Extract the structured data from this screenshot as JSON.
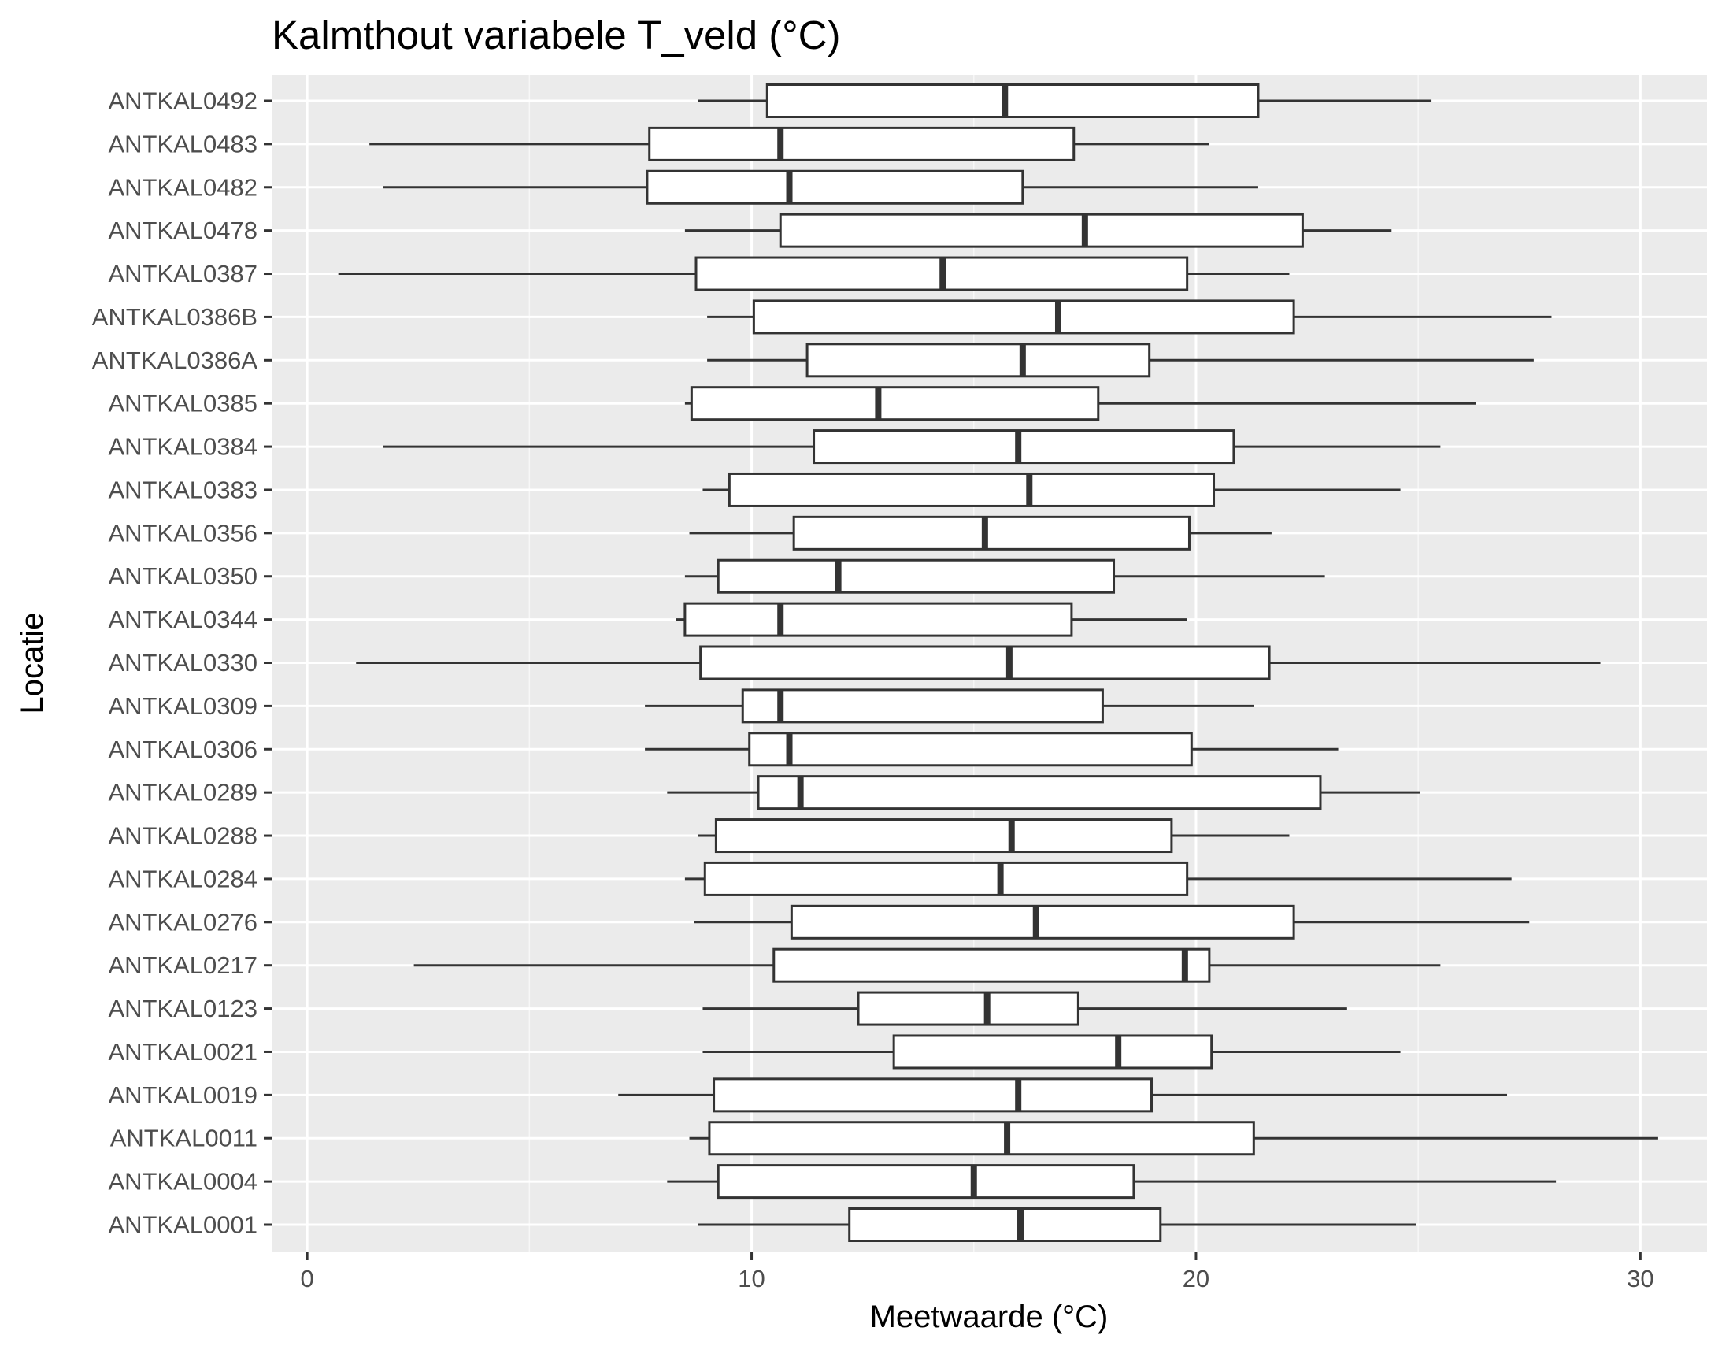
{
  "chart_data": {
    "type": "boxplot",
    "title": "Kalmthout variabele T_veld (°C)",
    "xlabel": "Meetwaarde (°C)",
    "ylabel": "Locatie",
    "xlim": [
      -0.8,
      31.5
    ],
    "x_ticks": [
      0,
      10,
      20,
      30
    ],
    "grid": true,
    "orientation": "horizontal",
    "categories": [
      "ANTKAL0492",
      "ANTKAL0483",
      "ANTKAL0482",
      "ANTKAL0478",
      "ANTKAL0387",
      "ANTKAL0386B",
      "ANTKAL0386A",
      "ANTKAL0385",
      "ANTKAL0384",
      "ANTKAL0383",
      "ANTKAL0356",
      "ANTKAL0350",
      "ANTKAL0344",
      "ANTKAL0330",
      "ANTKAL0309",
      "ANTKAL0306",
      "ANTKAL0289",
      "ANTKAL0288",
      "ANTKAL0284",
      "ANTKAL0276",
      "ANTKAL0217",
      "ANTKAL0123",
      "ANTKAL0021",
      "ANTKAL0019",
      "ANTKAL0011",
      "ANTKAL0004",
      "ANTKAL0001"
    ],
    "boxes": [
      {
        "location": "ANTKAL0492",
        "whisker_low": 8.8,
        "q1": 10.35,
        "median": 15.7,
        "q3": 21.4,
        "whisker_high": 25.3
      },
      {
        "location": "ANTKAL0483",
        "whisker_low": 1.4,
        "q1": 7.7,
        "median": 10.65,
        "q3": 17.25,
        "whisker_high": 20.3
      },
      {
        "location": "ANTKAL0482",
        "whisker_low": 1.7,
        "q1": 7.65,
        "median": 10.85,
        "q3": 16.1,
        "whisker_high": 21.4
      },
      {
        "location": "ANTKAL0478",
        "whisker_low": 8.5,
        "q1": 10.65,
        "median": 17.5,
        "q3": 22.4,
        "whisker_high": 24.4
      },
      {
        "location": "ANTKAL0387",
        "whisker_low": 0.7,
        "q1": 8.75,
        "median": 14.3,
        "q3": 19.8,
        "whisker_high": 22.1
      },
      {
        "location": "ANTKAL0386B",
        "whisker_low": 9.0,
        "q1": 10.05,
        "median": 16.9,
        "q3": 22.2,
        "whisker_high": 28.0
      },
      {
        "location": "ANTKAL0386A",
        "whisker_low": 9.0,
        "q1": 11.25,
        "median": 16.1,
        "q3": 18.95,
        "whisker_high": 27.6
      },
      {
        "location": "ANTKAL0385",
        "whisker_low": 8.5,
        "q1": 8.65,
        "median": 12.85,
        "q3": 17.8,
        "whisker_high": 26.3
      },
      {
        "location": "ANTKAL0384",
        "whisker_low": 1.7,
        "q1": 11.4,
        "median": 16.0,
        "q3": 20.85,
        "whisker_high": 25.5
      },
      {
        "location": "ANTKAL0383",
        "whisker_low": 8.9,
        "q1": 9.5,
        "median": 16.25,
        "q3": 20.4,
        "whisker_high": 24.6
      },
      {
        "location": "ANTKAL0356",
        "whisker_low": 8.6,
        "q1": 10.95,
        "median": 15.25,
        "q3": 19.85,
        "whisker_high": 21.7
      },
      {
        "location": "ANTKAL0350",
        "whisker_low": 8.5,
        "q1": 9.25,
        "median": 11.95,
        "q3": 18.15,
        "whisker_high": 22.9
      },
      {
        "location": "ANTKAL0344",
        "whisker_low": 8.3,
        "q1": 8.5,
        "median": 10.65,
        "q3": 17.2,
        "whisker_high": 19.8
      },
      {
        "location": "ANTKAL0330",
        "whisker_low": 1.1,
        "q1": 8.85,
        "median": 15.8,
        "q3": 21.65,
        "whisker_high": 29.1
      },
      {
        "location": "ANTKAL0309",
        "whisker_low": 7.6,
        "q1": 9.8,
        "median": 10.65,
        "q3": 17.9,
        "whisker_high": 21.3
      },
      {
        "location": "ANTKAL0306",
        "whisker_low": 7.6,
        "q1": 9.95,
        "median": 10.85,
        "q3": 19.9,
        "whisker_high": 23.2
      },
      {
        "location": "ANTKAL0289",
        "whisker_low": 8.1,
        "q1": 10.15,
        "median": 11.1,
        "q3": 22.8,
        "whisker_high": 25.05
      },
      {
        "location": "ANTKAL0288",
        "whisker_low": 8.8,
        "q1": 9.2,
        "median": 15.85,
        "q3": 19.45,
        "whisker_high": 22.1
      },
      {
        "location": "ANTKAL0284",
        "whisker_low": 8.5,
        "q1": 8.95,
        "median": 15.6,
        "q3": 19.8,
        "whisker_high": 27.1
      },
      {
        "location": "ANTKAL0276",
        "whisker_low": 8.7,
        "q1": 10.9,
        "median": 16.4,
        "q3": 22.2,
        "whisker_high": 27.5
      },
      {
        "location": "ANTKAL0217",
        "whisker_low": 2.4,
        "q1": 10.5,
        "median": 19.75,
        "q3": 20.3,
        "whisker_high": 25.5
      },
      {
        "location": "ANTKAL0123",
        "whisker_low": 8.9,
        "q1": 12.4,
        "median": 15.3,
        "q3": 17.35,
        "whisker_high": 23.4
      },
      {
        "location": "ANTKAL0021",
        "whisker_low": 8.9,
        "q1": 13.2,
        "median": 18.25,
        "q3": 20.35,
        "whisker_high": 24.6
      },
      {
        "location": "ANTKAL0019",
        "whisker_low": 7.0,
        "q1": 9.15,
        "median": 16.0,
        "q3": 19.0,
        "whisker_high": 27.0
      },
      {
        "location": "ANTKAL0011",
        "whisker_low": 8.6,
        "q1": 9.05,
        "median": 15.75,
        "q3": 21.3,
        "whisker_high": 30.4
      },
      {
        "location": "ANTKAL0004",
        "whisker_low": 8.1,
        "q1": 9.25,
        "median": 15.0,
        "q3": 18.6,
        "whisker_high": 28.1
      },
      {
        "location": "ANTKAL0001",
        "whisker_low": 8.8,
        "q1": 12.2,
        "median": 16.05,
        "q3": 19.2,
        "whisker_high": 24.95
      }
    ],
    "colors": {
      "panel_background": "#ebebeb",
      "grid_major": "#ffffff",
      "box_fill": "#ffffff",
      "box_stroke": "#333333",
      "tick_label": "#4d4d4d",
      "title": "#000000"
    }
  }
}
